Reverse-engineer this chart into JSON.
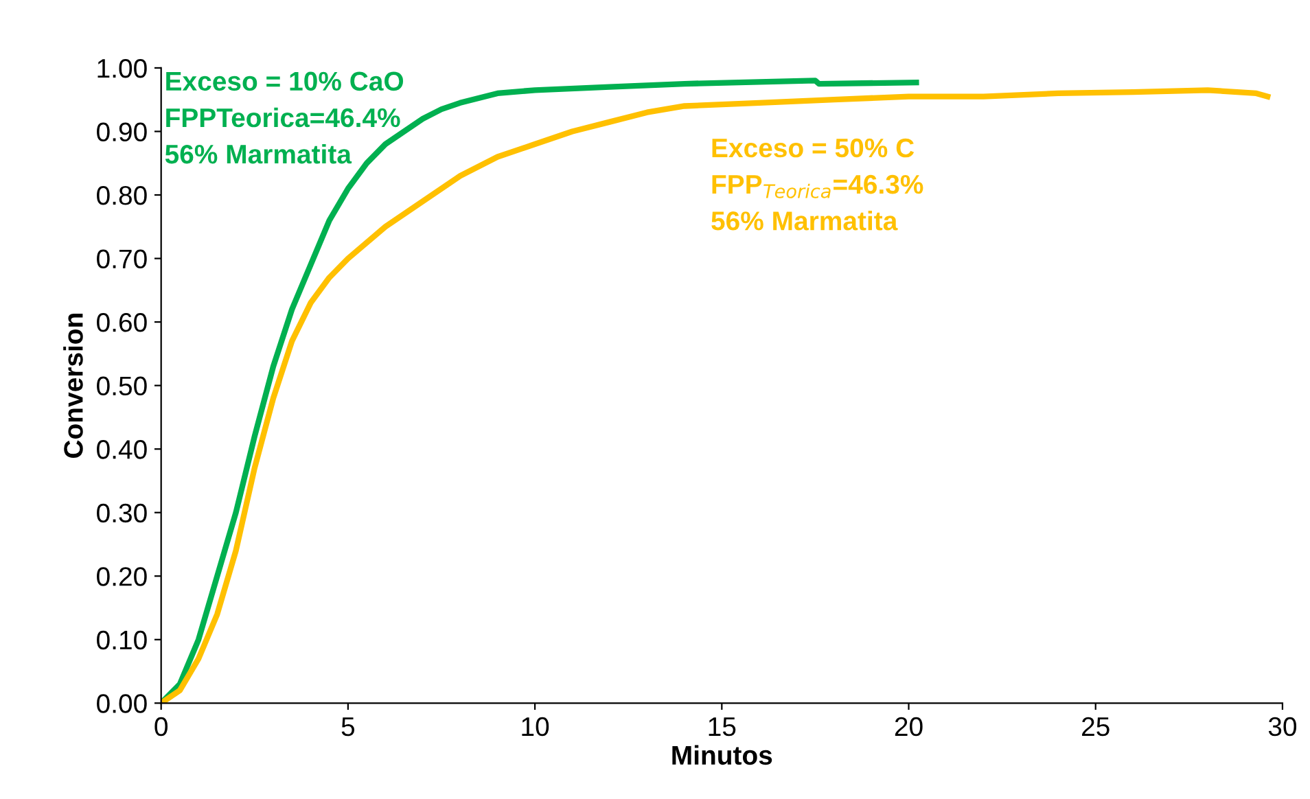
{
  "chart_data": {
    "type": "line",
    "xlabel": "Minutos",
    "ylabel": "Conversion",
    "xlim": [
      0,
      30
    ],
    "ylim": [
      0,
      1
    ],
    "xticks": [
      0,
      5,
      10,
      15,
      20,
      25,
      30
    ],
    "yticks": [
      {
        "value": 0,
        "label": "0.00"
      },
      {
        "value": 0.1,
        "label": "0.10"
      },
      {
        "value": 0.2,
        "label": "0.20"
      },
      {
        "value": 0.3,
        "label": "0.30"
      },
      {
        "value": 0.4,
        "label": "0.40"
      },
      {
        "value": 0.5,
        "label": "0.50"
      },
      {
        "value": 0.6,
        "label": "0.60"
      },
      {
        "value": 0.7,
        "label": "0.70"
      },
      {
        "value": 0.8,
        "label": "0.80"
      },
      {
        "value": 0.9,
        "label": "0.90"
      },
      {
        "value": 1,
        "label": "1.00"
      }
    ],
    "grid": false,
    "legend": false,
    "marker": "none",
    "line_style": "solid",
    "series": [
      {
        "name": "Exceso = 10% CaO\nFPPTeorica=46.4%\n56% Marmatita",
        "color": "#00b050",
        "x": [
          0,
          0.5,
          1,
          1.5,
          2,
          2.5,
          3,
          3.5,
          4,
          4.5,
          5,
          5.5,
          6,
          6.5,
          7,
          7.5,
          8,
          9,
          10,
          12,
          14,
          16,
          17.5,
          17.6,
          20.2
        ],
        "values": [
          0,
          0.03,
          0.1,
          0.2,
          0.3,
          0.42,
          0.53,
          0.62,
          0.69,
          0.76,
          0.81,
          0.85,
          0.88,
          0.9,
          0.92,
          0.935,
          0.945,
          0.96,
          0.965,
          0.97,
          0.975,
          0.978,
          0.98,
          0.975,
          0.977
        ]
      },
      {
        "name": "Exceso = 50% C\nFPP$_{Teorica}$=46.3%\n56% Marmatita",
        "color": "#ffc000",
        "x": [
          0,
          0.5,
          1,
          1.5,
          2,
          2.5,
          3,
          3.5,
          4,
          4.5,
          5,
          6,
          7,
          8,
          9,
          10,
          11,
          12,
          13,
          14,
          16,
          18,
          20,
          22,
          24,
          26,
          28,
          29.3,
          29.6
        ],
        "values": [
          0,
          0.02,
          0.07,
          0.14,
          0.24,
          0.37,
          0.48,
          0.57,
          0.63,
          0.67,
          0.7,
          0.75,
          0.79,
          0.83,
          0.86,
          0.88,
          0.9,
          0.915,
          0.93,
          0.94,
          0.945,
          0.95,
          0.955,
          0.955,
          0.96,
          0.962,
          0.965,
          0.96,
          0.955
        ]
      }
    ]
  }
}
